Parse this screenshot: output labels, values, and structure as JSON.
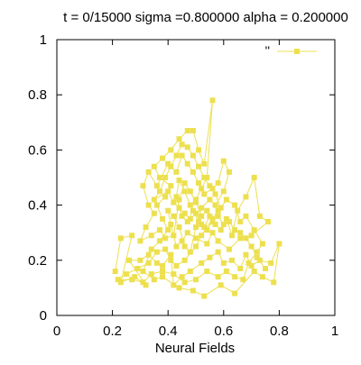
{
  "chart_data": {
    "type": "line",
    "title": "t = 0/15000 sigma =0.800000 alpha = 0.200000",
    "xlabel": "Neural Fields",
    "ylabel": "",
    "xlim": [
      0,
      1
    ],
    "ylim": [
      0,
      1
    ],
    "x_ticks": [
      "0",
      "0.2",
      "0.4",
      "0.6",
      "0.8",
      "1"
    ],
    "y_ticks": [
      "0",
      "0.2",
      "0.4",
      "0.6",
      "0.8",
      "1"
    ],
    "grid": false,
    "legend_position": "top-right",
    "marker": "square",
    "series_color": "#ede04f",
    "series": [
      {
        "name": "''",
        "points": [
          [
            0.21,
            0.16
          ],
          [
            0.23,
            0.28
          ],
          [
            0.27,
            0.29
          ],
          [
            0.23,
            0.12
          ],
          [
            0.28,
            0.14
          ],
          [
            0.32,
            0.11
          ],
          [
            0.26,
            0.2
          ],
          [
            0.3,
            0.2
          ],
          [
            0.33,
            0.22
          ],
          [
            0.36,
            0.19
          ],
          [
            0.38,
            0.18
          ],
          [
            0.41,
            0.22
          ],
          [
            0.42,
            0.11
          ],
          [
            0.45,
            0.14
          ],
          [
            0.48,
            0.16
          ],
          [
            0.52,
            0.19
          ],
          [
            0.55,
            0.21
          ],
          [
            0.58,
            0.23
          ],
          [
            0.6,
            0.19
          ],
          [
            0.63,
            0.2
          ],
          [
            0.66,
            0.17
          ],
          [
            0.68,
            0.22
          ],
          [
            0.7,
            0.18
          ],
          [
            0.73,
            0.2
          ],
          [
            0.77,
            0.19
          ],
          [
            0.8,
            0.26
          ],
          [
            0.78,
            0.12
          ],
          [
            0.74,
            0.14
          ],
          [
            0.71,
            0.16
          ],
          [
            0.64,
            0.08
          ],
          [
            0.59,
            0.11
          ],
          [
            0.53,
            0.07
          ],
          [
            0.49,
            0.09
          ],
          [
            0.44,
            0.1
          ],
          [
            0.38,
            0.14
          ],
          [
            0.35,
            0.13
          ],
          [
            0.31,
            0.16
          ],
          [
            0.34,
            0.24
          ],
          [
            0.37,
            0.27
          ],
          [
            0.4,
            0.31
          ],
          [
            0.38,
            0.35
          ],
          [
            0.36,
            0.4
          ],
          [
            0.39,
            0.43
          ],
          [
            0.41,
            0.47
          ],
          [
            0.37,
            0.5
          ],
          [
            0.35,
            0.54
          ],
          [
            0.38,
            0.57
          ],
          [
            0.41,
            0.6
          ],
          [
            0.44,
            0.64
          ],
          [
            0.47,
            0.67
          ],
          [
            0.49,
            0.67
          ],
          [
            0.51,
            0.6
          ],
          [
            0.53,
            0.55
          ],
          [
            0.56,
            0.78
          ],
          [
            0.54,
            0.5
          ],
          [
            0.52,
            0.46
          ],
          [
            0.5,
            0.42
          ],
          [
            0.48,
            0.4
          ],
          [
            0.46,
            0.45
          ],
          [
            0.44,
            0.49
          ],
          [
            0.43,
            0.43
          ],
          [
            0.45,
            0.36
          ],
          [
            0.47,
            0.34
          ],
          [
            0.49,
            0.38
          ],
          [
            0.51,
            0.34
          ],
          [
            0.53,
            0.32
          ],
          [
            0.55,
            0.36
          ],
          [
            0.57,
            0.33
          ],
          [
            0.59,
            0.31
          ],
          [
            0.61,
            0.35
          ],
          [
            0.63,
            0.29
          ],
          [
            0.65,
            0.38
          ],
          [
            0.68,
            0.43
          ],
          [
            0.71,
            0.5
          ],
          [
            0.73,
            0.36
          ],
          [
            0.76,
            0.34
          ],
          [
            0.7,
            0.29
          ],
          [
            0.66,
            0.28
          ],
          [
            0.62,
            0.24
          ],
          [
            0.58,
            0.27
          ],
          [
            0.56,
            0.3
          ],
          [
            0.54,
            0.26
          ],
          [
            0.5,
            0.28
          ],
          [
            0.47,
            0.3
          ],
          [
            0.45,
            0.27
          ],
          [
            0.43,
            0.25
          ],
          [
            0.41,
            0.33
          ],
          [
            0.4,
            0.38
          ],
          [
            0.42,
            0.36
          ],
          [
            0.44,
            0.32
          ],
          [
            0.46,
            0.25
          ],
          [
            0.48,
            0.23
          ],
          [
            0.5,
            0.32
          ],
          [
            0.52,
            0.39
          ],
          [
            0.55,
            0.42
          ],
          [
            0.57,
            0.4
          ],
          [
            0.6,
            0.45
          ],
          [
            0.62,
            0.52
          ],
          [
            0.6,
            0.56
          ],
          [
            0.58,
            0.48
          ],
          [
            0.56,
            0.46
          ],
          [
            0.53,
            0.44
          ],
          [
            0.51,
            0.48
          ],
          [
            0.49,
            0.52
          ],
          [
            0.47,
            0.55
          ],
          [
            0.45,
            0.58
          ],
          [
            0.43,
            0.52
          ],
          [
            0.4,
            0.55
          ],
          [
            0.36,
            0.47
          ],
          [
            0.33,
            0.52
          ],
          [
            0.31,
            0.47
          ],
          [
            0.33,
            0.4
          ],
          [
            0.35,
            0.37
          ],
          [
            0.32,
            0.32
          ],
          [
            0.3,
            0.27
          ],
          [
            0.34,
            0.29
          ],
          [
            0.37,
            0.31
          ],
          [
            0.39,
            0.28
          ],
          [
            0.42,
            0.29
          ],
          [
            0.44,
            0.42
          ],
          [
            0.46,
            0.48
          ],
          [
            0.48,
            0.45
          ],
          [
            0.5,
            0.41
          ],
          [
            0.52,
            0.36
          ],
          [
            0.54,
            0.38
          ],
          [
            0.56,
            0.35
          ],
          [
            0.58,
            0.38
          ],
          [
            0.52,
            0.29
          ],
          [
            0.5,
            0.25
          ],
          [
            0.46,
            0.2
          ],
          [
            0.43,
            0.18
          ],
          [
            0.41,
            0.2
          ],
          [
            0.39,
            0.24
          ],
          [
            0.36,
            0.23
          ],
          [
            0.33,
            0.19
          ],
          [
            0.29,
            0.17
          ],
          [
            0.25,
            0.15
          ],
          [
            0.22,
            0.13
          ],
          [
            0.27,
            0.13
          ],
          [
            0.31,
            0.12
          ],
          [
            0.34,
            0.15
          ],
          [
            0.38,
            0.16
          ],
          [
            0.42,
            0.15
          ],
          [
            0.46,
            0.12
          ],
          [
            0.5,
            0.13
          ],
          [
            0.54,
            0.16
          ],
          [
            0.58,
            0.14
          ],
          [
            0.61,
            0.16
          ],
          [
            0.64,
            0.14
          ],
          [
            0.67,
            0.13
          ],
          [
            0.69,
            0.19
          ],
          [
            0.72,
            0.23
          ],
          [
            0.74,
            0.26
          ],
          [
            0.71,
            0.31
          ],
          [
            0.68,
            0.36
          ],
          [
            0.66,
            0.34
          ],
          [
            0.64,
            0.4
          ],
          [
            0.61,
            0.42
          ],
          [
            0.59,
            0.39
          ],
          [
            0.57,
            0.44
          ],
          [
            0.55,
            0.47
          ],
          [
            0.53,
            0.5
          ],
          [
            0.51,
            0.54
          ],
          [
            0.49,
            0.58
          ],
          [
            0.47,
            0.61
          ],
          [
            0.45,
            0.62
          ],
          [
            0.43,
            0.58
          ],
          [
            0.41,
            0.54
          ],
          [
            0.39,
            0.5
          ],
          [
            0.37,
            0.45
          ],
          [
            0.35,
            0.42
          ],
          [
            0.4,
            0.45
          ],
          [
            0.42,
            0.41
          ],
          [
            0.44,
            0.39
          ],
          [
            0.46,
            0.37
          ],
          [
            0.48,
            0.35
          ],
          [
            0.5,
            0.37
          ],
          [
            0.52,
            0.33
          ],
          [
            0.54,
            0.31
          ],
          [
            0.56,
            0.34
          ],
          [
            0.58,
            0.36
          ],
          [
            0.6,
            0.33
          ],
          [
            0.62,
            0.34
          ],
          [
            0.64,
            0.31
          ],
          [
            0.66,
            0.3
          ],
          [
            0.68,
            0.28
          ],
          [
            0.7,
            0.25
          ],
          [
            0.72,
            0.21
          ],
          [
            0.75,
            0.17
          ]
        ]
      }
    ]
  }
}
